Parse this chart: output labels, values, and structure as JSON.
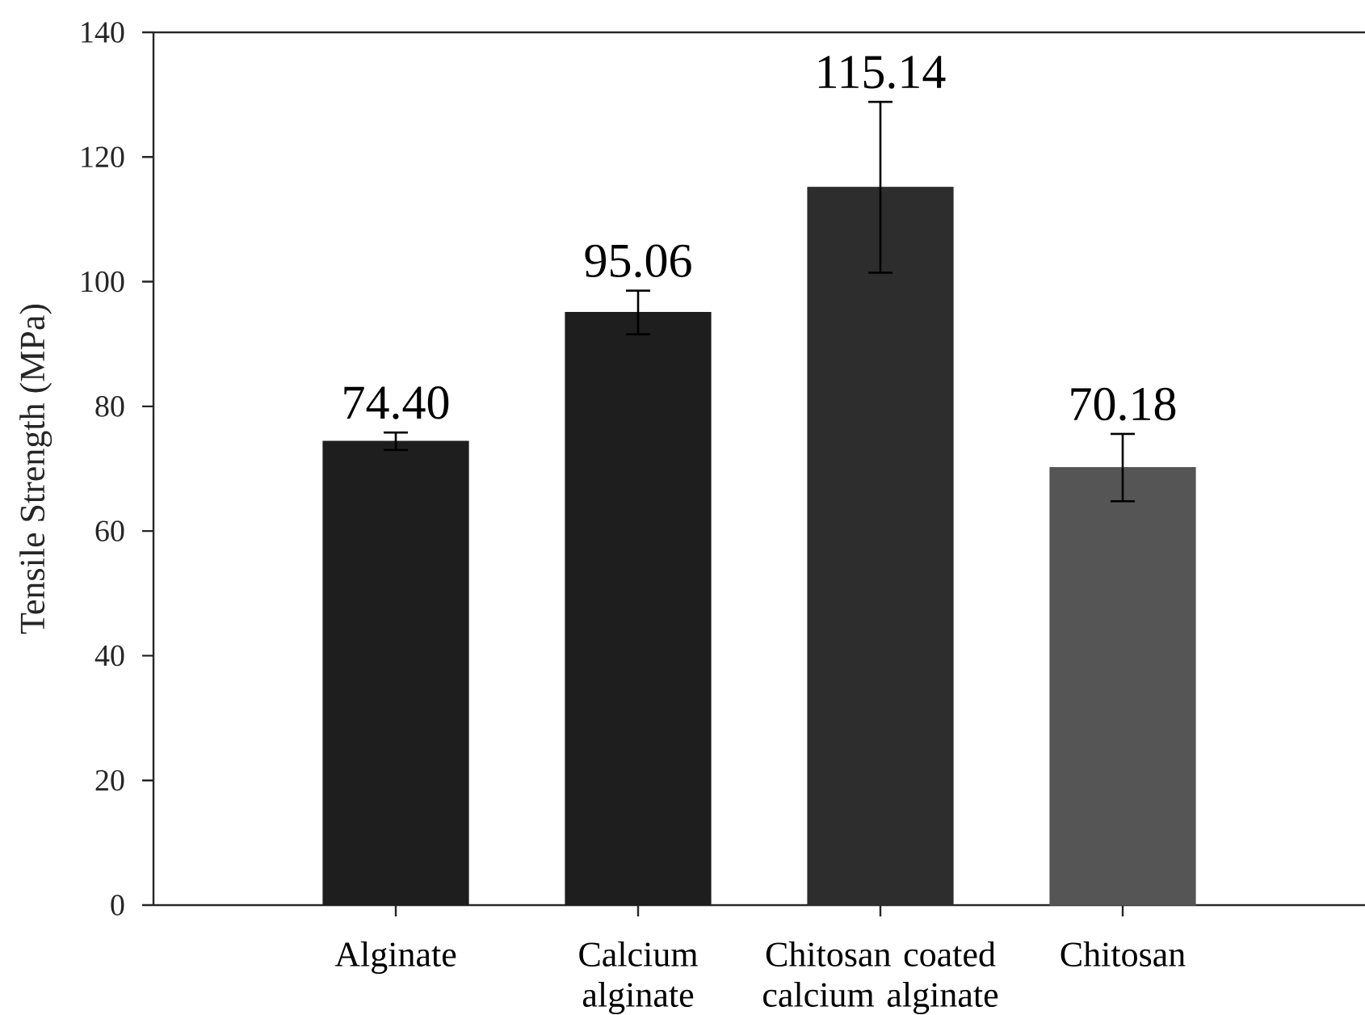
{
  "chart_data": {
    "type": "bar",
    "ylabel": "Tensile Strength (MPa)",
    "categories": [
      "Alginate",
      "Calcium alginate",
      "Chitosan coated calcium alginate",
      "Chitosan"
    ],
    "values": [
      74.4,
      95.06,
      115.14,
      70.18
    ],
    "errors": [
      1.4,
      3.5,
      13.7,
      5.4
    ],
    "colors": [
      "#1e1e1e",
      "#1e1e1e",
      "#2d2d2d",
      "#555555"
    ],
    "value_labels": [
      "74.40",
      "95.06",
      "115.14",
      "70.18"
    ],
    "ylim": [
      0,
      140
    ],
    "yticks": [
      0,
      20,
      40,
      60,
      80,
      100,
      120,
      140
    ]
  }
}
